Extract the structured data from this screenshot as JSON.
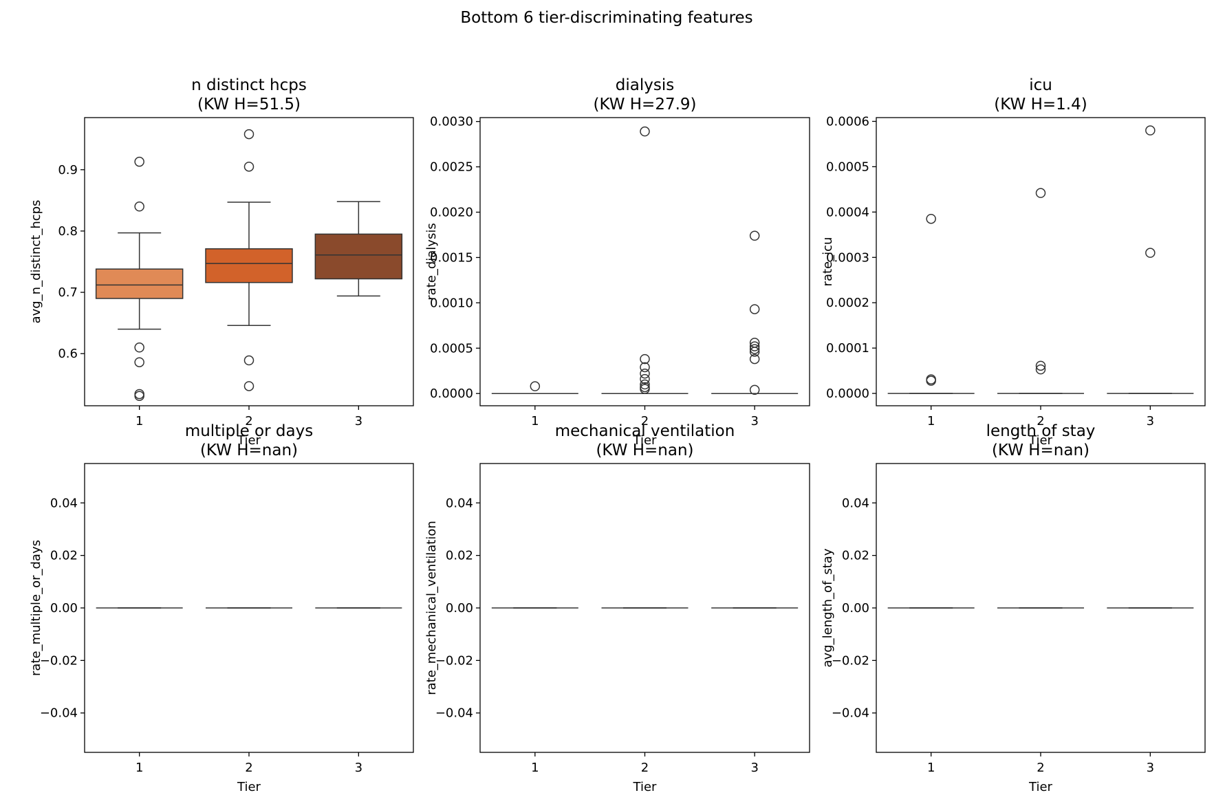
{
  "suptitle": "Bottom 6 tier-discriminating features",
  "chart_data": [
    {
      "type": "box",
      "title": "n distinct hcps",
      "subtitle": "(KW H=51.5)",
      "xlabel": "Tier",
      "ylabel": "avg_n_distinct_hcps",
      "categories": [
        "1",
        "2",
        "3"
      ],
      "ylim": [
        0.515,
        0.985
      ],
      "yticks": [
        0.6,
        0.7,
        0.8,
        0.9
      ],
      "ytick_labels": [
        "0.6",
        "0.7",
        "0.8",
        "0.9"
      ],
      "colors": [
        "#e08a56",
        "#d2622a",
        "#8a4a2c"
      ],
      "boxes": [
        {
          "whislo": 0.64,
          "q1": 0.69,
          "med": 0.712,
          "q3": 0.738,
          "whishi": 0.797,
          "fliers": [
            0.913,
            0.84,
            0.61,
            0.586,
            0.534,
            0.531
          ]
        },
        {
          "whislo": 0.646,
          "q1": 0.716,
          "med": 0.747,
          "q3": 0.771,
          "whishi": 0.847,
          "fliers": [
            0.958,
            0.905,
            0.589,
            0.547
          ]
        },
        {
          "whislo": 0.694,
          "q1": 0.722,
          "med": 0.761,
          "q3": 0.795,
          "whishi": 0.848,
          "fliers": []
        }
      ]
    },
    {
      "type": "box",
      "title": "dialysis",
      "subtitle": "(KW H=27.9)",
      "xlabel": "Tier",
      "ylabel": "rate_dialysis",
      "categories": [
        "1",
        "2",
        "3"
      ],
      "ylim": [
        -0.000135,
        0.003043
      ],
      "yticks": [
        0,
        0.0005,
        0.001,
        0.0015,
        0.002,
        0.0025,
        0.003
      ],
      "ytick_labels": [
        "0.0000",
        "0.0005",
        "0.0010",
        "0.0015",
        "0.0020",
        "0.0025",
        "0.0030"
      ],
      "colors": [
        "#e08a56",
        "#d2622a",
        "#8a4a2c"
      ],
      "boxes": [
        {
          "whislo": 0,
          "q1": 0,
          "med": 0,
          "q3": 0,
          "whishi": 0,
          "fliers": [
            8e-05
          ]
        },
        {
          "whislo": 0,
          "q1": 0,
          "med": 0,
          "q3": 0,
          "whishi": 0,
          "fliers": [
            0.00289,
            0.00038,
            0.00029,
            0.00022,
            0.00016,
            0.0001,
            7e-05,
            5e-05
          ]
        },
        {
          "whislo": 0,
          "q1": 0,
          "med": 0,
          "q3": 0,
          "whishi": 0,
          "fliers": [
            0.00174,
            0.00093,
            0.00056,
            0.00052,
            0.00049,
            0.00046,
            0.00038,
            4e-05
          ]
        }
      ]
    },
    {
      "type": "box",
      "title": "icu",
      "subtitle": "(KW H=1.4)",
      "xlabel": "Tier",
      "ylabel": "rate_icu",
      "categories": [
        "1",
        "2",
        "3"
      ],
      "ylim": [
        -2.72e-05,
        0.0006083
      ],
      "yticks": [
        0,
        0.0001,
        0.0002,
        0.0003,
        0.0004,
        0.0005,
        0.0006
      ],
      "ytick_labels": [
        "0.0000",
        "0.0001",
        "0.0002",
        "0.0003",
        "0.0004",
        "0.0005",
        "0.0006"
      ],
      "colors": [
        "#e08a56",
        "#d2622a",
        "#8a4a2c"
      ],
      "boxes": [
        {
          "whislo": 0,
          "q1": 0,
          "med": 0,
          "q3": 0,
          "whishi": 0,
          "fliers": [
            0.000385,
            3.1e-05,
            2.8e-05
          ]
        },
        {
          "whislo": 0,
          "q1": 0,
          "med": 0,
          "q3": 0,
          "whishi": 0,
          "fliers": [
            0.000442,
            6.1e-05,
            5.3e-05
          ]
        },
        {
          "whislo": 0,
          "q1": 0,
          "med": 0,
          "q3": 0,
          "whishi": 0,
          "fliers": [
            0.00058,
            0.00031
          ]
        }
      ]
    },
    {
      "type": "box",
      "title": "multiple or days",
      "subtitle": "(KW H=nan)",
      "xlabel": "Tier",
      "ylabel": "rate_multiple_or_days",
      "categories": [
        "1",
        "2",
        "3"
      ],
      "ylim": [
        -0.055,
        0.055
      ],
      "yticks": [
        -0.04,
        -0.02,
        0,
        0.02,
        0.04
      ],
      "ytick_labels": [
        "−0.04",
        "−0.02",
        "0.00",
        "0.02",
        "0.04"
      ],
      "colors": [
        "#e08a56",
        "#d2622a",
        "#8a4a2c"
      ],
      "boxes": [
        {
          "whislo": 0,
          "q1": 0,
          "med": 0,
          "q3": 0,
          "whishi": 0,
          "fliers": []
        },
        {
          "whislo": 0,
          "q1": 0,
          "med": 0,
          "q3": 0,
          "whishi": 0,
          "fliers": []
        },
        {
          "whislo": 0,
          "q1": 0,
          "med": 0,
          "q3": 0,
          "whishi": 0,
          "fliers": []
        }
      ]
    },
    {
      "type": "box",
      "title": "mechanical ventilation",
      "subtitle": "(KW H=nan)",
      "xlabel": "Tier",
      "ylabel": "rate_mechanical_ventilation",
      "categories": [
        "1",
        "2",
        "3"
      ],
      "ylim": [
        -0.055,
        0.055
      ],
      "yticks": [
        -0.04,
        -0.02,
        0,
        0.02,
        0.04
      ],
      "ytick_labels": [
        "−0.04",
        "−0.02",
        "0.00",
        "0.02",
        "0.04"
      ],
      "colors": [
        "#e08a56",
        "#d2622a",
        "#8a4a2c"
      ],
      "boxes": [
        {
          "whislo": 0,
          "q1": 0,
          "med": 0,
          "q3": 0,
          "whishi": 0,
          "fliers": []
        },
        {
          "whislo": 0,
          "q1": 0,
          "med": 0,
          "q3": 0,
          "whishi": 0,
          "fliers": []
        },
        {
          "whislo": 0,
          "q1": 0,
          "med": 0,
          "q3": 0,
          "whishi": 0,
          "fliers": []
        }
      ]
    },
    {
      "type": "box",
      "title": "length of stay",
      "subtitle": "(KW H=nan)",
      "xlabel": "Tier",
      "ylabel": "avg_length_of_stay",
      "categories": [
        "1",
        "2",
        "3"
      ],
      "ylim": [
        -0.055,
        0.055
      ],
      "yticks": [
        -0.04,
        -0.02,
        0,
        0.02,
        0.04
      ],
      "ytick_labels": [
        "−0.04",
        "−0.02",
        "0.00",
        "0.02",
        "0.04"
      ],
      "colors": [
        "#e08a56",
        "#d2622a",
        "#8a4a2c"
      ],
      "boxes": [
        {
          "whislo": 0,
          "q1": 0,
          "med": 0,
          "q3": 0,
          "whishi": 0,
          "fliers": []
        },
        {
          "whislo": 0,
          "q1": 0,
          "med": 0,
          "q3": 0,
          "whishi": 0,
          "fliers": []
        },
        {
          "whislo": 0,
          "q1": 0,
          "med": 0,
          "q3": 0,
          "whishi": 0,
          "fliers": []
        }
      ]
    }
  ]
}
